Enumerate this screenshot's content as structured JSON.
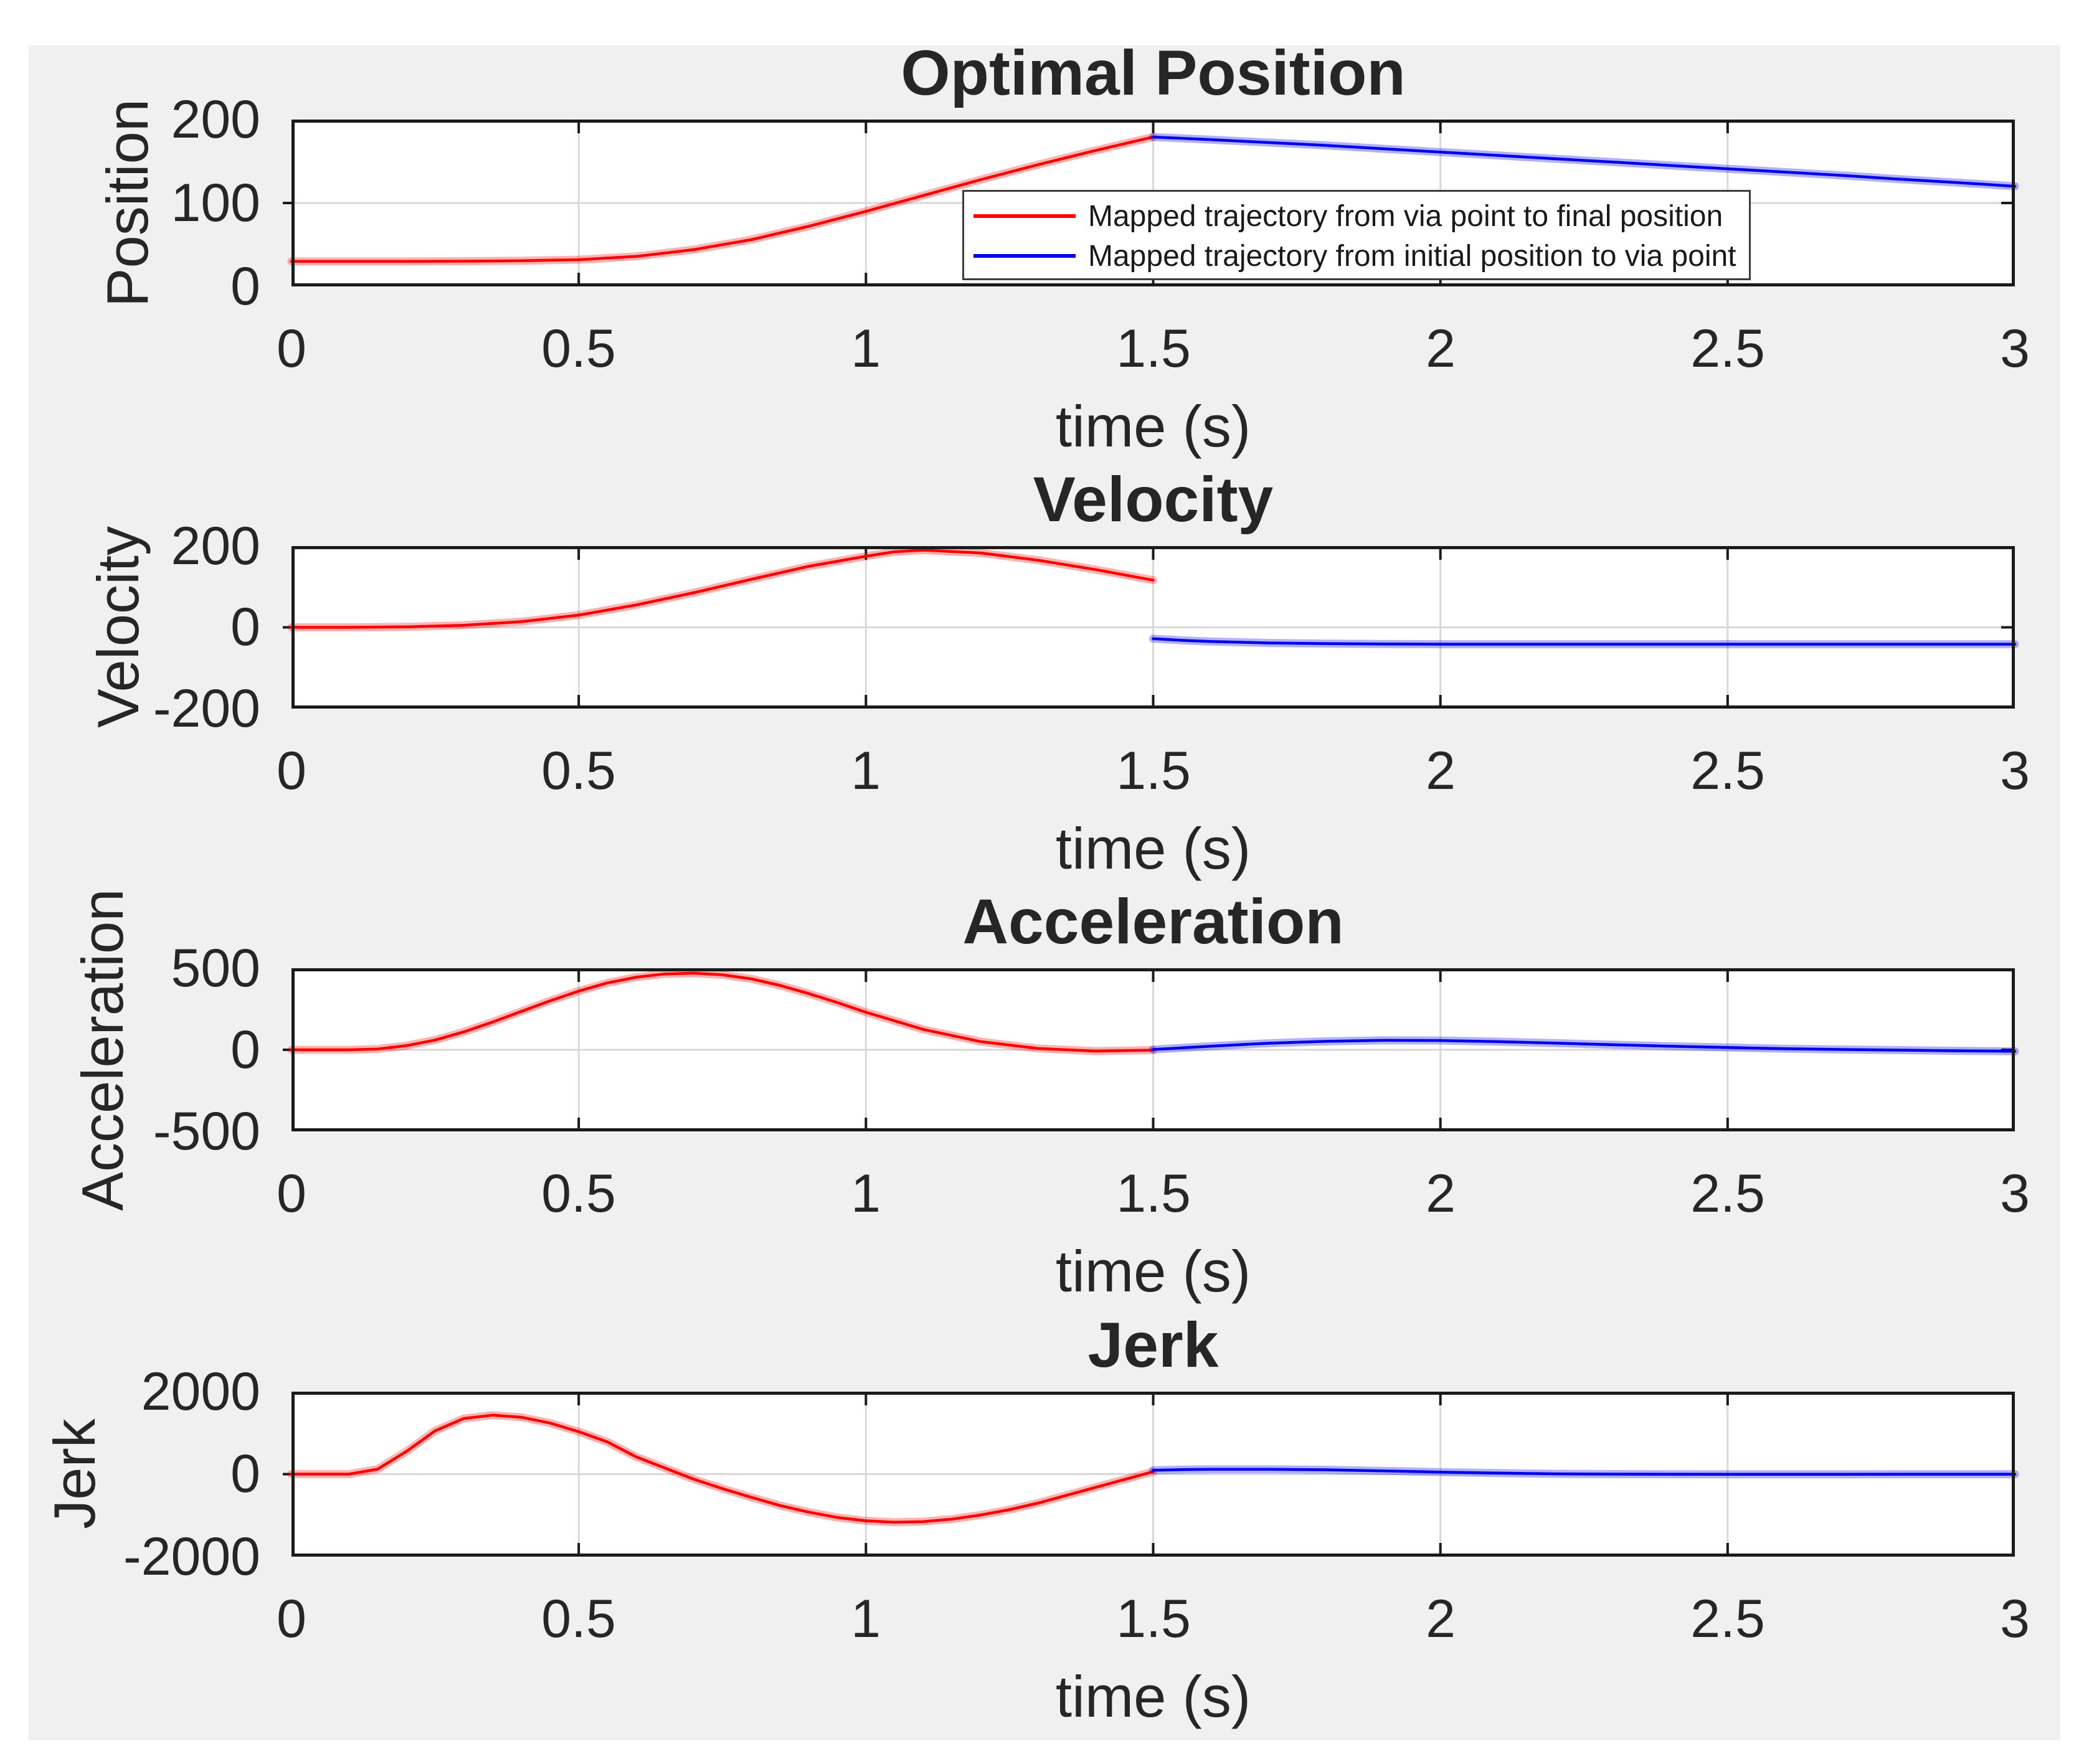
{
  "palette": {
    "red_series": "#ff0000",
    "blue_series": "#0000ee",
    "figure_background": "#f0f0f0",
    "axes_background": "#ffffff",
    "axis_color": "#1a1a1a",
    "grid_color": "#d9d9d9",
    "text_color": "#262626"
  },
  "legend": {
    "items": [
      {
        "label": "Mapped trajectory from via point to final position",
        "color": "#ff0000"
      },
      {
        "label": "Mapped trajectory from initial position to via point",
        "color": "#0000ee"
      }
    ]
  },
  "chart_data": [
    {
      "type": "line",
      "title": "Optimal Position",
      "ylabel": "Position",
      "xlabel": "time (s)",
      "xlim": [
        0,
        3
      ],
      "ylim": [
        0,
        200
      ],
      "xticks": [
        0,
        0.5,
        1,
        1.5,
        2,
        2.5,
        3
      ],
      "xtick_labels": [
        "0",
        "0.5",
        "1",
        "1.5",
        "2",
        "2.5",
        "3"
      ],
      "yticks": [
        200,
        100,
        0
      ],
      "ytick_labels": [
        "200",
        "100",
        "0"
      ],
      "grid": {
        "vertical": [
          0.5,
          1,
          1.5,
          2,
          2.5
        ],
        "horizontal": [
          100
        ]
      },
      "legend_visible": true,
      "series": [
        {
          "name": "Mapped trajectory from via point to final position",
          "color": "#ff0000",
          "x": [
            0,
            0.1,
            0.2,
            0.3,
            0.4,
            0.5,
            0.6,
            0.7,
            0.8,
            0.9,
            1.0,
            1.1,
            1.2,
            1.3,
            1.4,
            1.5
          ],
          "y": [
            30,
            30,
            30,
            30.2,
            30.8,
            32,
            36,
            44,
            56,
            72,
            90,
            109,
            128,
            146,
            163,
            179
          ]
        },
        {
          "name": "Mapped trajectory from initial position to via point",
          "color": "#0000ee",
          "x": [
            1.5,
            1.6,
            1.7,
            1.8,
            1.9,
            2.0,
            2.1,
            2.2,
            2.3,
            2.4,
            2.5,
            2.6,
            2.7,
            2.8,
            2.9,
            3.0
          ],
          "y": [
            179,
            176,
            172.5,
            169,
            165,
            161,
            157,
            153,
            149,
            145,
            141,
            137,
            133,
            128.5,
            124.5,
            120
          ]
        }
      ]
    },
    {
      "type": "line",
      "title": "Velocity",
      "ylabel": "Velocity",
      "xlabel": "time (s)",
      "xlim": [
        0,
        3
      ],
      "ylim": [
        -200,
        200
      ],
      "xticks": [
        0,
        0.5,
        1,
        1.5,
        2,
        2.5,
        3
      ],
      "xtick_labels": [
        "0",
        "0.5",
        "1",
        "1.5",
        "2",
        "2.5",
        "3"
      ],
      "yticks": [
        200,
        0,
        -200
      ],
      "ytick_labels": [
        "200",
        "0",
        "-200"
      ],
      "grid": {
        "vertical": [
          0.5,
          1,
          1.5,
          2,
          2.5
        ],
        "horizontal": [
          0
        ]
      },
      "legend_visible": false,
      "series": [
        {
          "name": "Mapped trajectory from via point to final position",
          "color": "#ff0000",
          "x": [
            0,
            0.1,
            0.2,
            0.3,
            0.4,
            0.5,
            0.6,
            0.7,
            0.8,
            0.9,
            1.0,
            1.05,
            1.1,
            1.2,
            1.3,
            1.4,
            1.5
          ],
          "y": [
            0,
            0,
            1,
            5,
            14,
            30,
            55,
            85,
            118,
            150,
            175,
            186,
            190,
            183,
            165,
            142,
            116
          ]
        },
        {
          "name": "Mapped trajectory from initial position to via point",
          "color": "#0000ee",
          "x": [
            1.5,
            1.55,
            1.6,
            1.7,
            1.8,
            1.9,
            2.0,
            2.2,
            2.4,
            2.6,
            2.8,
            3.0
          ],
          "y": [
            -28,
            -32,
            -35,
            -38.5,
            -40,
            -41,
            -41.5,
            -41.5,
            -41.5,
            -41.5,
            -41.5,
            -41.5
          ]
        }
      ]
    },
    {
      "type": "line",
      "title": "Acceleration",
      "ylabel": "Acceleration",
      "xlabel": "time (s)",
      "xlim": [
        0,
        3
      ],
      "ylim": [
        -500,
        500
      ],
      "xticks": [
        0,
        0.5,
        1,
        1.5,
        2,
        2.5,
        3
      ],
      "xtick_labels": [
        "0",
        "0.5",
        "1",
        "1.5",
        "2",
        "2.5",
        "3"
      ],
      "yticks": [
        500,
        0,
        -500
      ],
      "ytick_labels": [
        "500",
        "0",
        "-500"
      ],
      "grid": {
        "vertical": [
          0.5,
          1,
          1.5,
          2,
          2.5
        ],
        "horizontal": [
          0
        ]
      },
      "legend_visible": false,
      "series": [
        {
          "name": "Mapped trajectory from via point to final position",
          "color": "#ff0000",
          "x": [
            0,
            0.1,
            0.15,
            0.2,
            0.25,
            0.3,
            0.35,
            0.4,
            0.45,
            0.5,
            0.55,
            0.6,
            0.65,
            0.7,
            0.75,
            0.8,
            0.85,
            0.9,
            0.95,
            1.0,
            1.1,
            1.2,
            1.3,
            1.4,
            1.5
          ],
          "y": [
            0,
            0,
            5,
            25,
            60,
            110,
            170,
            235,
            300,
            360,
            410,
            445,
            465,
            470,
            460,
            435,
            395,
            345,
            290,
            230,
            125,
            50,
            8,
            -8,
            -2
          ]
        },
        {
          "name": "Mapped trajectory from initial position to via point",
          "color": "#0000ee",
          "x": [
            1.5,
            1.6,
            1.7,
            1.8,
            1.9,
            2.0,
            2.1,
            2.2,
            2.3,
            2.4,
            2.5,
            2.6,
            2.7,
            2.8,
            2.9,
            3.0
          ],
          "y": [
            2,
            22,
            40,
            52,
            58,
            57,
            50,
            41,
            31,
            22,
            14,
            7,
            2,
            -2,
            -6,
            -9
          ]
        }
      ]
    },
    {
      "type": "line",
      "title": "Jerk",
      "ylabel": "Jerk",
      "xlabel": "time (s)",
      "xlim": [
        0,
        3
      ],
      "ylim": [
        -2000,
        2000
      ],
      "xticks": [
        0,
        0.5,
        1,
        1.5,
        2,
        2.5,
        3
      ],
      "xtick_labels": [
        "0",
        "0.5",
        "1",
        "1.5",
        "2",
        "2.5",
        "3"
      ],
      "yticks": [
        2000,
        0,
        -2000
      ],
      "ytick_labels": [
        "2000",
        "0",
        "-2000"
      ],
      "grid": {
        "vertical": [
          0.5,
          1,
          1.5,
          2,
          2.5
        ],
        "horizontal": [
          0
        ]
      },
      "legend_visible": false,
      "series": [
        {
          "name": "Mapped trajectory from via point to final position",
          "color": "#ff0000",
          "x": [
            0,
            0.1,
            0.15,
            0.2,
            0.25,
            0.3,
            0.35,
            0.4,
            0.45,
            0.5,
            0.55,
            0.6,
            0.65,
            0.7,
            0.75,
            0.8,
            0.85,
            0.9,
            0.95,
            1.0,
            1.05,
            1.1,
            1.15,
            1.2,
            1.25,
            1.3,
            1.35,
            1.4,
            1.45,
            1.5
          ],
          "y": [
            0,
            0,
            120,
            550,
            1050,
            1350,
            1430,
            1380,
            1240,
            1030,
            780,
            420,
            150,
            -120,
            -350,
            -560,
            -760,
            -920,
            -1050,
            -1130,
            -1165,
            -1150,
            -1090,
            -990,
            -860,
            -700,
            -510,
            -320,
            -130,
            60
          ]
        },
        {
          "name": "Mapped trajectory from initial position to via point",
          "color": "#0000ee",
          "x": [
            1.5,
            1.55,
            1.6,
            1.7,
            1.8,
            1.9,
            2.0,
            2.1,
            2.2,
            2.3,
            2.5,
            2.7,
            3.0
          ],
          "y": [
            95,
            110,
            118,
            118,
            105,
            80,
            50,
            25,
            8,
            0,
            -3,
            -3,
            -2
          ]
        }
      ]
    }
  ]
}
